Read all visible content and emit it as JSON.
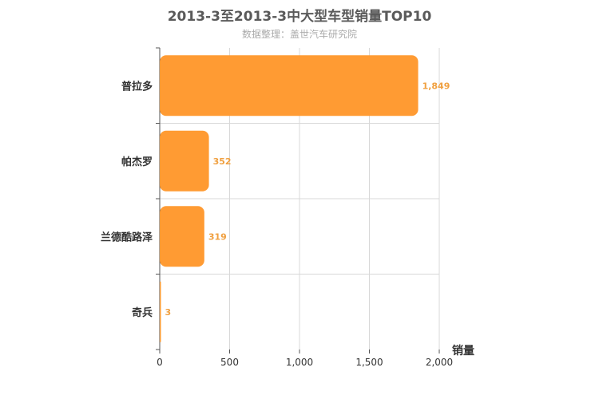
{
  "chart_data": {
    "type": "bar",
    "orientation": "horizontal",
    "title": "2013-3至2013-3中大型车型销量TOP10",
    "subtitle": "数据整理：盖世汽车研究院",
    "categories": [
      "普拉多",
      "帕杰罗",
      "兰德酷路泽",
      "奇兵"
    ],
    "values": [
      1849,
      352,
      319,
      3
    ],
    "value_labels": [
      "1,849",
      "352",
      "319",
      "3"
    ],
    "xlabel": "销量",
    "ylabel": "",
    "xlim": [
      0,
      2000
    ],
    "x_ticks": [
      0,
      500,
      1000,
      1500,
      2000
    ],
    "x_tick_labels": [
      "0",
      "500",
      "1,000",
      "1,500",
      "2,000"
    ],
    "grid": true,
    "legend": "none",
    "bar_color": "#ff9b33",
    "label_color": "#f0a040",
    "grid_color": "#d8d8d8",
    "axis_color": "#555555",
    "title_color": "#5a5a5a",
    "subtitle_color": "#aaaaaa"
  }
}
